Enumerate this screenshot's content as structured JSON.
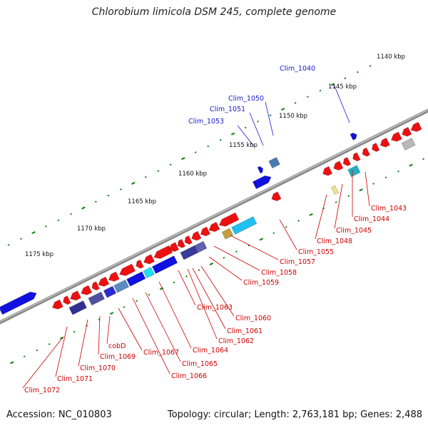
{
  "title": "Chlorobium limicola DSM 245, complete genome",
  "footer": {
    "accession": "Accession: NC_010803",
    "summary": "Topology: circular; Length: 2,763,181 bp; Genes: 2,488"
  },
  "colors": {
    "forward_label": "#1a1acc",
    "reverse_label": "#cc0000",
    "forward_gene": "#1010e0",
    "reverse_gene": "#ee1010",
    "backbone": "#888888",
    "tick": "#1a8a1a"
  },
  "scale_labels": [
    {
      "text": "1140 kbp"
    },
    {
      "text": "1145 kbp"
    },
    {
      "text": "1150 kbp"
    },
    {
      "text": "1155 kbp"
    },
    {
      "text": "1160 kbp"
    },
    {
      "text": "1165 kbp"
    },
    {
      "text": "1170 kbp"
    },
    {
      "text": "1175 kbp"
    }
  ],
  "forward_gene_labels": [
    {
      "text": "Clim_1040"
    },
    {
      "text": "Clim_1050"
    },
    {
      "text": "Clim_1051"
    },
    {
      "text": "Clim_1053"
    }
  ],
  "reverse_gene_labels": [
    {
      "text": "Clim_1043"
    },
    {
      "text": "Clim_1044"
    },
    {
      "text": "Clim_1045"
    },
    {
      "text": "Clim_1048"
    },
    {
      "text": "Clim_1055"
    },
    {
      "text": "Clim_1057"
    },
    {
      "text": "Clim_1058"
    },
    {
      "text": "Clim_1059"
    },
    {
      "text": "Clim_1060"
    },
    {
      "text": "Clim_1061"
    },
    {
      "text": "Clim_1062"
    },
    {
      "text": "Clim_1063"
    },
    {
      "text": "Clim_1064"
    },
    {
      "text": "Clim_1065"
    },
    {
      "text": "Clim_1066"
    },
    {
      "text": "Clim_1067"
    },
    {
      "text": "cobD"
    },
    {
      "text": "Clim_1069"
    },
    {
      "text": "Clim_1070"
    },
    {
      "text": "Clim_1071"
    },
    {
      "text": "Clim_1072"
    }
  ]
}
